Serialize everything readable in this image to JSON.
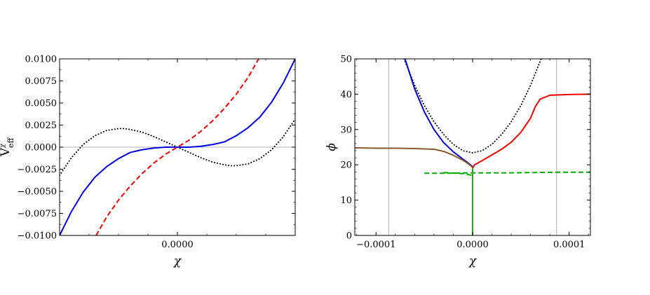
{
  "chart_data": [
    {
      "type": "line",
      "xlabel": "χ",
      "ylabel": "V_eff^χ",
      "ylabel_main": "V",
      "ylabel_sub": "eff",
      "ylabel_sup": "χ",
      "ylim": [
        -0.01,
        0.01
      ],
      "xlim": [
        -1,
        1
      ],
      "x_ticks": [
        0
      ],
      "x_tick_labels": [
        "0.0000"
      ],
      "y_ticks": [
        -0.01,
        -0.0075,
        -0.005,
        -0.0025,
        0,
        0.0025,
        0.005,
        0.0075,
        0.01
      ],
      "y_tick_labels": [
        "−0.0100",
        "−0.0075",
        "−0.0050",
        "−0.0025",
        "0.0000",
        "0.0025",
        "0.0050",
        "0.0075",
        "0.0100"
      ],
      "grid": false,
      "reference_line_y": 0,
      "series": [
        {
          "style": "dotted",
          "color": "#000000",
          "x": [
            -1,
            -0.9,
            -0.8,
            -0.7,
            -0.6,
            -0.5,
            -0.45,
            -0.4,
            -0.3,
            -0.2,
            -0.1,
            0,
            0.1,
            0.2,
            0.3,
            0.4,
            0.45,
            0.5,
            0.6,
            0.7,
            0.8,
            0.9,
            1
          ],
          "y": [
            -0.0032,
            -0.0012,
            0.0003,
            0.0013,
            0.0019,
            0.0021,
            0.0021,
            0.002,
            0.0017,
            0.0012,
            0.0006,
            0,
            -0.0006,
            -0.0012,
            -0.0017,
            -0.002,
            -0.0021,
            -0.0021,
            -0.0019,
            -0.0013,
            -0.0003,
            0.0012,
            0.0032
          ]
        },
        {
          "style": "solid",
          "color": "#0000dd",
          "x": [
            -1,
            -0.9,
            -0.8,
            -0.7,
            -0.6,
            -0.5,
            -0.4,
            -0.3,
            -0.2,
            -0.1,
            0,
            0.1,
            0.2,
            0.3,
            0.4,
            0.5,
            0.6,
            0.7,
            0.8,
            0.9,
            1
          ],
          "y": [
            -0.01,
            -0.0073,
            -0.0051,
            -0.0034,
            -0.0022,
            -0.0013,
            -0.0006,
            -0.0003,
            -0.0001,
            0,
            0,
            0,
            0.0001,
            0.0003,
            0.0006,
            0.0013,
            0.0022,
            0.0034,
            0.0051,
            0.0073,
            0.01
          ]
        },
        {
          "style": "dashed",
          "color": "#ee0000",
          "x": [
            -0.69,
            -0.6,
            -0.5,
            -0.4,
            -0.3,
            -0.2,
            -0.1,
            0,
            0.1,
            0.2,
            0.3,
            0.4,
            0.5,
            0.6,
            0.69
          ],
          "y": [
            -0.01,
            -0.0079,
            -0.006,
            -0.0044,
            -0.003,
            -0.0018,
            -0.0008,
            0,
            0.0008,
            0.0018,
            0.003,
            0.0044,
            0.006,
            0.0079,
            0.01
          ]
        }
      ]
    },
    {
      "type": "line",
      "xlabel": "χ",
      "ylabel": "ϕ",
      "xlim": [
        -0.000122,
        0.000122
      ],
      "ylim": [
        0,
        50
      ],
      "x_ticks": [
        -0.0001,
        0,
        0.0001
      ],
      "x_tick_labels": [
        "−0.0001",
        "0.0000",
        "0.0001"
      ],
      "y_ticks": [
        0,
        10,
        20,
        30,
        40,
        50
      ],
      "y_tick_labels": [
        "0",
        "10",
        "20",
        "30",
        "40",
        "50"
      ],
      "grid": false,
      "reference_lines_x": [
        -8.7e-05,
        8.7e-05
      ],
      "series": [
        {
          "style": "dotted",
          "color": "#000000",
          "x": [
            -7.1e-05,
            -6e-05,
            -5e-05,
            -4e-05,
            -3e-05,
            -2e-05,
            -1e-05,
            0,
            1e-05,
            2e-05,
            3e-05,
            4e-05,
            5e-05,
            6e-05,
            7.1e-05
          ],
          "y": [
            50,
            42.5,
            36.8,
            32.2,
            28.6,
            25.8,
            24.0,
            23.4,
            24.0,
            25.8,
            28.6,
            32.2,
            36.8,
            42.5,
            50
          ]
        },
        {
          "style": "solid",
          "color": "#0000cc",
          "x": [
            -7e-05,
            -6e-05,
            -5e-05,
            -4e-05,
            -3e-05,
            -2e-05,
            -1e-05,
            -5e-06,
            0
          ],
          "y": [
            50,
            41.5,
            35.0,
            30.0,
            26.3,
            23.7,
            21.6,
            20.6,
            19.5
          ]
        },
        {
          "style": "solid",
          "color": "#8b5a2b",
          "x": [
            -0.000122,
            -0.0001,
            -8e-05,
            -6e-05,
            -4e-05,
            -3e-05,
            -2e-05,
            -1e-05,
            -5e-06,
            0
          ],
          "y": [
            24.8,
            24.7,
            24.7,
            24.6,
            24.4,
            23.8,
            22.7,
            21.3,
            20.4,
            19.3
          ]
        },
        {
          "style": "solid",
          "color": "#ee0000",
          "x": [
            0,
            2e-06,
            1e-05,
            2e-05,
            3e-05,
            4e-05,
            5e-05,
            6e-05,
            6.5e-05,
            7e-05,
            8e-05,
            0.0001,
            0.000122
          ],
          "y": [
            19.0,
            20.0,
            21.2,
            22.8,
            24.4,
            26.4,
            29.2,
            33.2,
            36.5,
            38.6,
            39.7,
            39.9,
            40.0
          ]
        },
        {
          "style": "dashed",
          "color": "#00aa00",
          "x": [
            -5e-05,
            -3e-05,
            -1e-05,
            0,
            3e-05,
            6e-05,
            9e-05,
            0.000122
          ],
          "y": [
            17.6,
            17.6,
            17.7,
            17.7,
            17.7,
            17.8,
            17.9,
            17.9
          ]
        },
        {
          "style": "dashed",
          "color": "#00aa00",
          "x": [
            -3e-05,
            -1e-05,
            -2e-06,
            0
          ],
          "y": [
            17.8,
            17.5,
            17.1,
            16.8
          ]
        },
        {
          "style": "solid",
          "color": "#22aa22",
          "x": [
            0,
            0
          ],
          "y": [
            0,
            19.0
          ]
        }
      ]
    }
  ]
}
